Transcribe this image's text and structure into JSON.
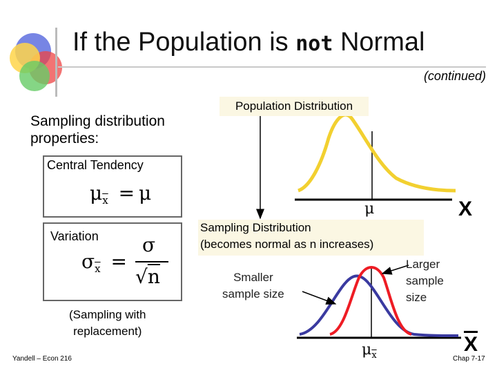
{
  "slide": {
    "title_part1": "If the Population is ",
    "title_emphasis": "not",
    "title_part2": "Normal",
    "continued": "(continued)",
    "properties_line1": "Sampling distribution",
    "properties_line2": "properties:",
    "central_tendency_label": "Central Tendency",
    "variation_label": "Variation",
    "replacement_line1": "(Sampling with",
    "replacement_line2": "replacement)",
    "population_label": "Population Distribution",
    "sampling_label_line1": "Sampling Distribution",
    "sampling_label_line2": "(becomes normal as n increases)",
    "smaller_line1": "Smaller",
    "smaller_line2": "sample size",
    "larger_line1": "Larger",
    "larger_line2": "sample",
    "larger_line3": "size",
    "mu_symbol": "μ",
    "x_symbol": "X",
    "footer_left": "Yandell – Econ 216",
    "footer_right": "Chap 7-17"
  },
  "formulas": {
    "mean_lhs": "μ",
    "mean_sub": "x",
    "equals": "=",
    "mean_rhs": "μ",
    "sd_lhs": "σ",
    "sd_sub": "x",
    "sd_num": "σ",
    "sd_den": "n",
    "sqrt_sign": "√"
  },
  "colors": {
    "population_curve": "#f2d030",
    "smaller_curve": "#3a3aa0",
    "larger_curve": "#ee1c24",
    "label_bg": "#fbf7e3"
  }
}
